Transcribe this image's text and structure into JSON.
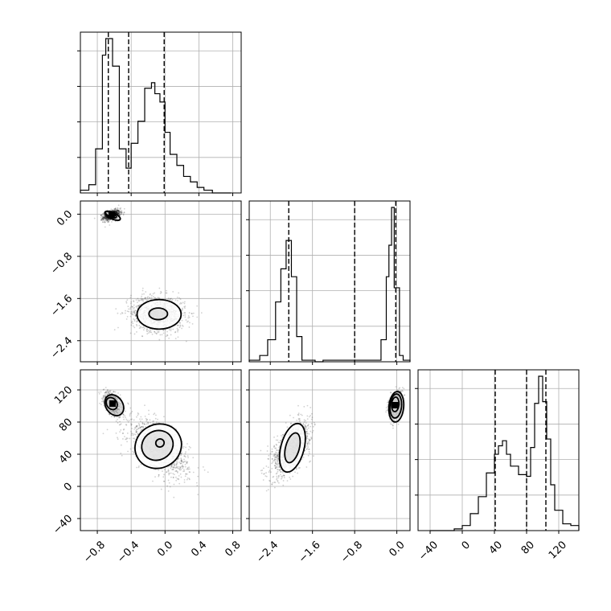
{
  "chart_data": {
    "type": "corner",
    "grid": true,
    "parameters": [
      {
        "range": [
          -1.0,
          0.9
        ],
        "ticks": [
          "-0.8",
          "-0.4",
          "0.0",
          "0.4",
          "0.8"
        ],
        "tick_values": [
          -0.8,
          -0.4,
          0.0,
          0.4,
          0.8
        ],
        "quantiles": [
          -0.67,
          -0.43,
          -0.01
        ],
        "histogram": {
          "bin_edges": [
            -1.0,
            -0.9,
            -0.82,
            -0.74,
            -0.7,
            -0.66,
            -0.62,
            -0.58,
            -0.54,
            -0.5,
            -0.46,
            -0.4,
            -0.32,
            -0.24,
            -0.16,
            -0.12,
            -0.06,
            0.0,
            0.06,
            0.14,
            0.22,
            0.3,
            0.38,
            0.46,
            0.56,
            0.66,
            0.78
          ],
          "counts": [
            1,
            3,
            16,
            50,
            56,
            56,
            46,
            46,
            16,
            16,
            9,
            18,
            26,
            38,
            40,
            36,
            33,
            22,
            14,
            10,
            6,
            4,
            2,
            1,
            0,
            0
          ]
        }
      },
      {
        "range": [
          -2.8,
          0.25
        ],
        "ticks": [
          "-2.4",
          "-1.6",
          "-0.8",
          "0.0"
        ],
        "tick_values": [
          -2.4,
          -1.6,
          -0.8,
          0.0
        ],
        "quantiles": [
          -2.05,
          -0.8,
          -0.02
        ],
        "histogram": {
          "bin_edges": [
            -2.8,
            -2.6,
            -2.45,
            -2.3,
            -2.2,
            -2.1,
            -2.0,
            -1.9,
            -1.8,
            -1.7,
            -1.55,
            -1.4,
            -0.3,
            -0.2,
            -0.15,
            -0.1,
            -0.05,
            0.05,
            0.12,
            0.25
          ],
          "counts": [
            1,
            4,
            14,
            38,
            59,
            77,
            54,
            16,
            1,
            1,
            0,
            1,
            14,
            54,
            74,
            98,
            47,
            4,
            1
          ]
        }
      },
      {
        "range": [
          -55,
          145
        ],
        "ticks": [
          "-40",
          "0",
          "40",
          "80",
          "120"
        ],
        "tick_values": [
          -40,
          0,
          40,
          80,
          120
        ],
        "quantiles": [
          41,
          80,
          104
        ],
        "histogram": {
          "bin_edges": [
            -40,
            -10,
            0,
            10,
            20,
            30,
            40,
            45,
            50,
            55,
            60,
            70,
            80,
            85,
            90,
            95,
            100,
            105,
            110,
            115,
            125,
            135,
            145
          ],
          "counts": [
            0,
            1,
            3,
            10,
            20,
            34,
            45,
            50,
            53,
            45,
            38,
            33,
            32,
            49,
            75,
            91,
            76,
            54,
            27,
            12,
            4,
            3
          ]
        }
      }
    ],
    "scatter_panels": [
      {
        "x_param": 0,
        "y_param": 1,
        "clusters": [
          {
            "cx": -0.63,
            "cy": -0.02,
            "sx": 0.05,
            "sy": 0.05,
            "rho": 0.4,
            "n": 900
          },
          {
            "cx": -0.08,
            "cy": -1.89,
            "sx": 0.16,
            "sy": 0.17,
            "rho": -0.1,
            "n": 1100
          }
        ],
        "contours": [
          {
            "cx": -0.64,
            "cy": -0.01,
            "rx": 0.07,
            "ry": 0.04,
            "angle": 25
          },
          {
            "cx": -0.62,
            "cy": -0.03,
            "rx": 0.1,
            "ry": 0.06,
            "angle": 25
          },
          {
            "cx": -0.08,
            "cy": -1.89,
            "rx": 0.11,
            "ry": 0.11,
            "angle": 0
          },
          {
            "cx": -0.07,
            "cy": -1.9,
            "rx": 0.26,
            "ry": 0.28,
            "angle": 0
          }
        ]
      },
      {
        "x_param": 0,
        "y_param": 2,
        "clusters": [
          {
            "cx": -0.62,
            "cy": 103,
            "sx": 0.05,
            "sy": 7,
            "rho": -0.5,
            "n": 900
          },
          {
            "cx": -0.08,
            "cy": 48,
            "sx": 0.18,
            "sy": 18,
            "rho": -0.6,
            "n": 1100
          }
        ],
        "contours": [
          {
            "cx": -0.63,
            "cy": 103,
            "rx": 0.06,
            "ry": 8,
            "angle": -35
          },
          {
            "cx": -0.6,
            "cy": 101,
            "rx": 0.1,
            "ry": 14,
            "angle": -35
          },
          {
            "cx": -0.06,
            "cy": 54,
            "rx": 0.05,
            "ry": 5,
            "angle": -30
          },
          {
            "cx": -0.09,
            "cy": 51,
            "rx": 0.19,
            "ry": 18,
            "angle": -30
          },
          {
            "cx": -0.08,
            "cy": 50,
            "rx": 0.28,
            "ry": 27,
            "angle": -30
          }
        ]
      },
      {
        "x_param": 1,
        "y_param": 2,
        "clusters": [
          {
            "cx": -2.0,
            "cy": 48,
            "sx": 0.18,
            "sy": 17,
            "rho": 0.6,
            "n": 1100
          },
          {
            "cx": -0.03,
            "cy": 101,
            "sx": 0.06,
            "sy": 8,
            "rho": 0.3,
            "n": 900
          }
        ],
        "contours": [
          {
            "cx": -1.98,
            "cy": 48,
            "rx": 0.13,
            "ry": 19,
            "angle": 15
          },
          {
            "cx": -1.98,
            "cy": 48,
            "rx": 0.22,
            "ry": 31,
            "angle": 15
          },
          {
            "cx": -0.03,
            "cy": 102,
            "rx": 0.07,
            "ry": 9,
            "angle": 5
          },
          {
            "cx": -0.02,
            "cy": 100,
            "rx": 0.11,
            "ry": 15,
            "angle": 5
          },
          {
            "cx": -0.01,
            "cy": 99,
            "rx": 0.14,
            "ry": 19,
            "angle": 5
          }
        ]
      }
    ]
  }
}
